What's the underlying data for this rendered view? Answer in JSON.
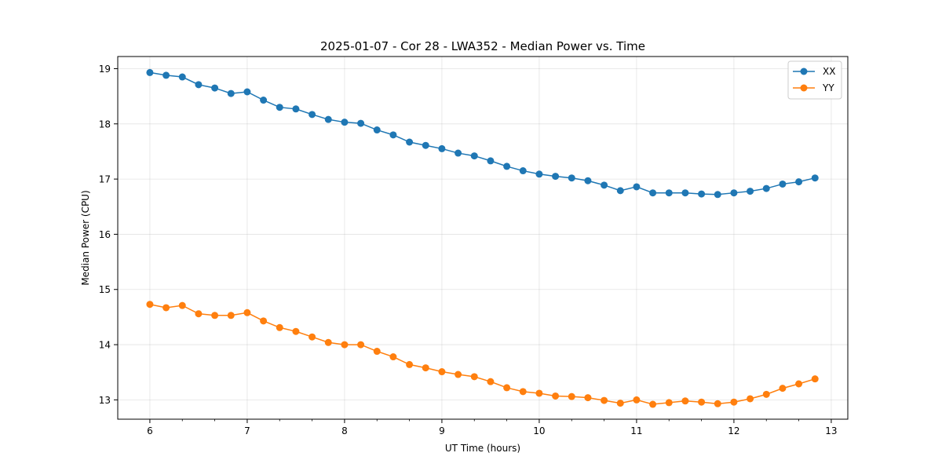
{
  "chart_data": {
    "type": "line",
    "title": "2025-01-07 - Cor 28 - LWA352 - Median Power vs. Time",
    "xlabel": "UT Time (hours)",
    "ylabel": "Median Power (CPU)",
    "xlim": [
      5.67,
      13.17
    ],
    "ylim": [
      12.65,
      19.22
    ],
    "xticks": [
      6,
      7,
      8,
      9,
      10,
      11,
      12,
      13
    ],
    "yticks": [
      13,
      14,
      15,
      16,
      17,
      18,
      19
    ],
    "xtick_labels": [
      "6",
      "7",
      "8",
      "9",
      "10",
      "11",
      "12",
      "13"
    ],
    "ytick_labels": [
      "13",
      "14",
      "15",
      "16",
      "17",
      "18",
      "19"
    ],
    "minor_xtick_step": 0.333333,
    "grid": true,
    "legend_position": "top-right",
    "x": [
      6.0,
      6.1667,
      6.3333,
      6.5,
      6.6667,
      6.8333,
      7.0,
      7.1667,
      7.3333,
      7.5,
      7.6667,
      7.8333,
      8.0,
      8.1667,
      8.3333,
      8.5,
      8.6667,
      8.8333,
      9.0,
      9.1667,
      9.3333,
      9.5,
      9.6667,
      9.8333,
      10.0,
      10.1667,
      10.3333,
      10.5,
      10.6667,
      10.8333,
      11.0,
      11.1667,
      11.3333,
      11.5,
      11.6667,
      11.8333,
      12.0,
      12.1667,
      12.3333,
      12.5,
      12.6667,
      12.8333
    ],
    "series": [
      {
        "name": "XX",
        "color": "#1f77b4",
        "values": [
          18.93,
          18.88,
          18.85,
          18.71,
          18.65,
          18.55,
          18.58,
          18.43,
          18.3,
          18.27,
          18.17,
          18.08,
          18.03,
          18.01,
          17.89,
          17.8,
          17.67,
          17.61,
          17.55,
          17.47,
          17.42,
          17.33,
          17.23,
          17.15,
          17.09,
          17.05,
          17.02,
          16.97,
          16.89,
          16.79,
          16.86,
          16.75,
          16.75,
          16.75,
          16.73,
          16.72,
          16.75,
          16.78,
          16.83,
          16.91,
          16.95,
          17.02
        ]
      },
      {
        "name": "YY",
        "color": "#ff7f0e",
        "values": [
          14.73,
          14.67,
          14.71,
          14.56,
          14.53,
          14.53,
          14.58,
          14.43,
          14.31,
          14.24,
          14.14,
          14.04,
          14.0,
          14.0,
          13.88,
          13.78,
          13.64,
          13.58,
          13.51,
          13.46,
          13.42,
          13.33,
          13.22,
          13.15,
          13.12,
          13.07,
          13.06,
          13.04,
          12.99,
          12.94,
          13.0,
          12.92,
          12.95,
          12.98,
          12.96,
          12.93,
          12.96,
          13.02,
          13.1,
          13.21,
          13.29,
          13.38
        ]
      }
    ]
  }
}
